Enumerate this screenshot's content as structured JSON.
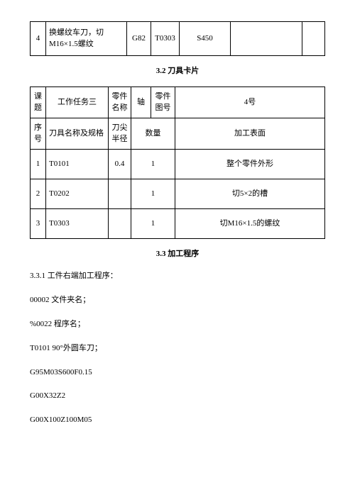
{
  "table1": {
    "rows": [
      {
        "num": "4",
        "op": "换螺纹车刀，切M16×1.5螺纹",
        "gcode": "G82",
        "tcode": "T0303",
        "scode": "S450",
        "blank1": "",
        "blank2": ""
      }
    ]
  },
  "sections": {
    "s32": "3.2   刀具卡片",
    "s33": "3.3   加工程序"
  },
  "table2": {
    "hdr1": {
      "topic": "课题",
      "task": "工作任务三",
      "partname_lbl": "零件名称",
      "axis": "轴",
      "partnum_lbl": "零件图号",
      "partnum_val": "4号"
    },
    "hdr2": {
      "serial": "序号",
      "toolspec": "刀具名称及规格",
      "tip": "刀尖半径",
      "qty": "数量",
      "surface": "加工表面"
    },
    "rows": [
      {
        "n": "1",
        "tool": "T0101",
        "tip": "0.4",
        "qty": "1",
        "surf": "整个零件外形"
      },
      {
        "n": "2",
        "tool": "T0202",
        "tip": "",
        "qty": "1",
        "surf": "切5×2的槽"
      },
      {
        "n": "3",
        "tool": "T0303",
        "tip": "",
        "qty": "1",
        "surf": "切M16×1.5的螺纹"
      }
    ]
  },
  "program": {
    "p1": "3.3.1  工件右端加工程序：",
    "p2": "00002  文件夹名；",
    "p3": "%0022   程序名；",
    "p4": "T0101   90°外圆车刀；",
    "p5": "G95M03S600F0.15",
    "p6": "G00X32Z2",
    "p7": "G00X100Z100M05"
  }
}
